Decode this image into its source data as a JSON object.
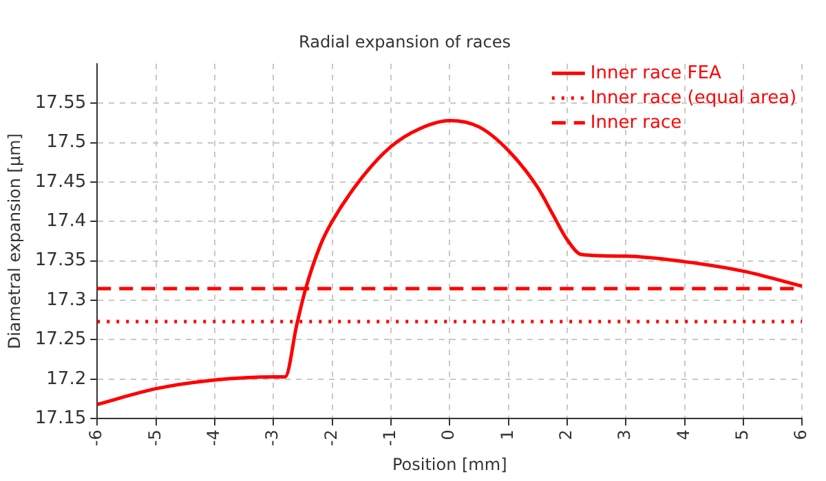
{
  "chart_data": {
    "type": "line",
    "title": "Radial expansion of races",
    "xlabel": "Position [mm]",
    "ylabel": "Diametral expansion [µm]",
    "xlim": [
      -6,
      6
    ],
    "xticks": [
      -6,
      -5,
      -4,
      -3,
      -2,
      -1,
      0,
      1,
      2,
      3,
      4,
      5,
      6
    ],
    "ylim": [
      17.15,
      17.6
    ],
    "yticks": [
      17.15,
      17.2,
      17.25,
      17.3,
      17.35,
      17.4,
      17.45,
      17.5,
      17.55
    ],
    "grid": true,
    "legend": "top right",
    "marker": "none",
    "series": [
      {
        "name": "Inner race FEA",
        "color": "#ff0000",
        "line_style": "solid",
        "x": [
          -6,
          -5,
          -4,
          -3,
          -2.8,
          -2.6,
          -2.45,
          -2.2,
          -2,
          -1.5,
          -1,
          -0.5,
          0,
          0.5,
          1,
          1.5,
          1.75,
          2,
          2.25,
          3,
          4,
          5,
          6
        ],
        "values": [
          17.168,
          17.188,
          17.199,
          17.203,
          17.203,
          17.27,
          17.315,
          17.37,
          17.4,
          17.455,
          17.495,
          17.518,
          17.528,
          17.52,
          17.49,
          17.443,
          17.41,
          17.377,
          17.358,
          17.356,
          17.349,
          17.337,
          17.318
        ]
      },
      {
        "name": "Inner race (equal area)",
        "color": "#ff0000",
        "line_style": "dotted",
        "x": [
          -6,
          6
        ],
        "values": [
          17.273,
          17.273
        ]
      },
      {
        "name": "Inner race",
        "color": "#ff0000",
        "line_style": "dashed",
        "x": [
          -6,
          6
        ],
        "values": [
          17.315,
          17.315
        ]
      }
    ]
  }
}
